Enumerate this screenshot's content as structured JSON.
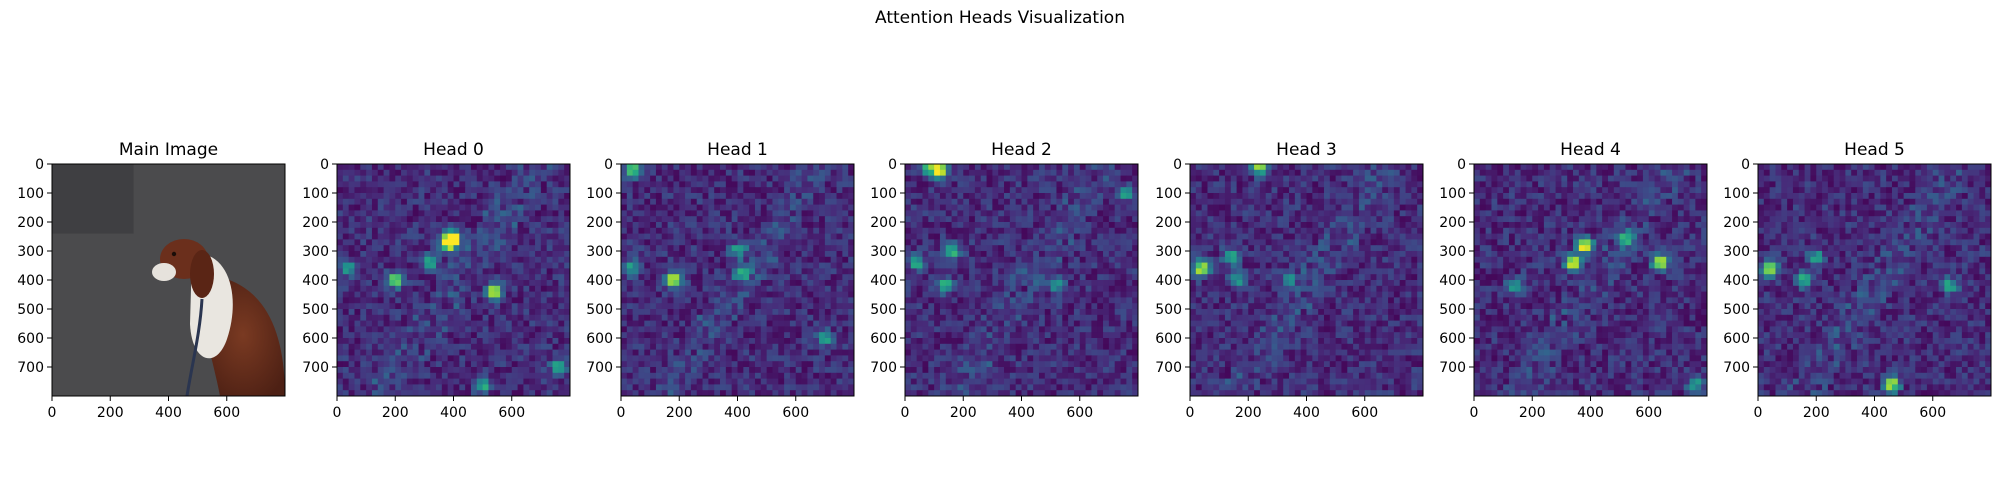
{
  "figure": {
    "title": "Attention Heads Visualization"
  },
  "chart_data": [
    {
      "type": "heatmap",
      "title": "Main Image",
      "content": "photo",
      "xticks": [
        0,
        200,
        400,
        600
      ],
      "yticks": [
        0,
        100,
        200,
        300,
        400,
        500,
        600,
        700
      ],
      "xlim": [
        0,
        800
      ],
      "ylim": [
        800,
        0
      ]
    },
    {
      "type": "heatmap",
      "title": "Head 0",
      "colormap": "viridis",
      "grid": [
        40,
        40
      ],
      "seed": 11,
      "xticks": [
        0,
        200,
        400,
        600
      ],
      "yticks": [
        0,
        100,
        200,
        300,
        400,
        500,
        600,
        700
      ],
      "xlim": [
        0,
        800
      ],
      "ylim": [
        800,
        0
      ],
      "hotspots": [
        [
          380,
          270,
          1.0
        ],
        [
          400,
          260,
          0.9
        ],
        [
          540,
          440,
          0.95
        ],
        [
          200,
          400,
          0.7
        ],
        [
          320,
          340,
          0.6
        ],
        [
          500,
          760,
          0.55
        ],
        [
          760,
          700,
          0.5
        ],
        [
          40,
          360,
          0.45
        ]
      ]
    },
    {
      "type": "heatmap",
      "title": "Head 1",
      "colormap": "viridis",
      "grid": [
        40,
        40
      ],
      "seed": 23,
      "xticks": [
        0,
        200,
        400,
        600
      ],
      "yticks": [
        0,
        100,
        200,
        300,
        400,
        500,
        600,
        700
      ],
      "xlim": [
        0,
        800
      ],
      "ylim": [
        800,
        0
      ],
      "hotspots": [
        [
          40,
          20,
          0.75
        ],
        [
          180,
          400,
          0.85
        ],
        [
          40,
          360,
          0.5
        ],
        [
          420,
          380,
          0.5
        ],
        [
          400,
          300,
          0.45
        ],
        [
          700,
          600,
          0.45
        ]
      ]
    },
    {
      "type": "heatmap",
      "title": "Head 2",
      "colormap": "viridis",
      "grid": [
        40,
        40
      ],
      "seed": 37,
      "xticks": [
        0,
        200,
        400,
        600
      ],
      "yticks": [
        0,
        100,
        200,
        300,
        400,
        500,
        600,
        700
      ],
      "xlim": [
        0,
        800
      ],
      "ylim": [
        800,
        0
      ],
      "hotspots": [
        [
          120,
          20,
          0.95
        ],
        [
          80,
          10,
          0.7
        ],
        [
          160,
          300,
          0.6
        ],
        [
          140,
          420,
          0.55
        ],
        [
          40,
          340,
          0.5
        ],
        [
          520,
          420,
          0.45
        ],
        [
          760,
          100,
          0.45
        ]
      ]
    },
    {
      "type": "heatmap",
      "title": "Head 3",
      "colormap": "viridis",
      "grid": [
        40,
        40
      ],
      "seed": 51,
      "xticks": [
        0,
        200,
        400,
        600
      ],
      "yticks": [
        0,
        100,
        200,
        300,
        400,
        500,
        600,
        700
      ],
      "xlim": [
        0,
        800
      ],
      "ylim": [
        800,
        0
      ],
      "hotspots": [
        [
          40,
          360,
          0.9
        ],
        [
          240,
          10,
          0.8
        ],
        [
          140,
          320,
          0.55
        ],
        [
          160,
          400,
          0.5
        ],
        [
          340,
          400,
          0.45
        ]
      ]
    },
    {
      "type": "heatmap",
      "title": "Head 4",
      "colormap": "viridis",
      "grid": [
        40,
        40
      ],
      "seed": 67,
      "xticks": [
        0,
        200,
        400,
        600
      ],
      "yticks": [
        0,
        100,
        200,
        300,
        400,
        500,
        600,
        700
      ],
      "xlim": [
        0,
        800
      ],
      "ylim": [
        800,
        0
      ],
      "hotspots": [
        [
          380,
          280,
          1.0
        ],
        [
          340,
          340,
          0.9
        ],
        [
          640,
          340,
          0.95
        ],
        [
          520,
          260,
          0.6
        ],
        [
          140,
          420,
          0.5
        ],
        [
          760,
          760,
          0.5
        ]
      ]
    },
    {
      "type": "heatmap",
      "title": "Head 5",
      "colormap": "viridis",
      "grid": [
        40,
        40
      ],
      "seed": 79,
      "xticks": [
        0,
        200,
        400,
        600
      ],
      "yticks": [
        0,
        100,
        200,
        300,
        400,
        500,
        600,
        700
      ],
      "xlim": [
        0,
        800
      ],
      "ylim": [
        800,
        0
      ],
      "hotspots": [
        [
          40,
          360,
          0.9
        ],
        [
          460,
          760,
          0.85
        ],
        [
          160,
          400,
          0.55
        ],
        [
          200,
          320,
          0.45
        ],
        [
          660,
          420,
          0.5
        ]
      ]
    }
  ]
}
